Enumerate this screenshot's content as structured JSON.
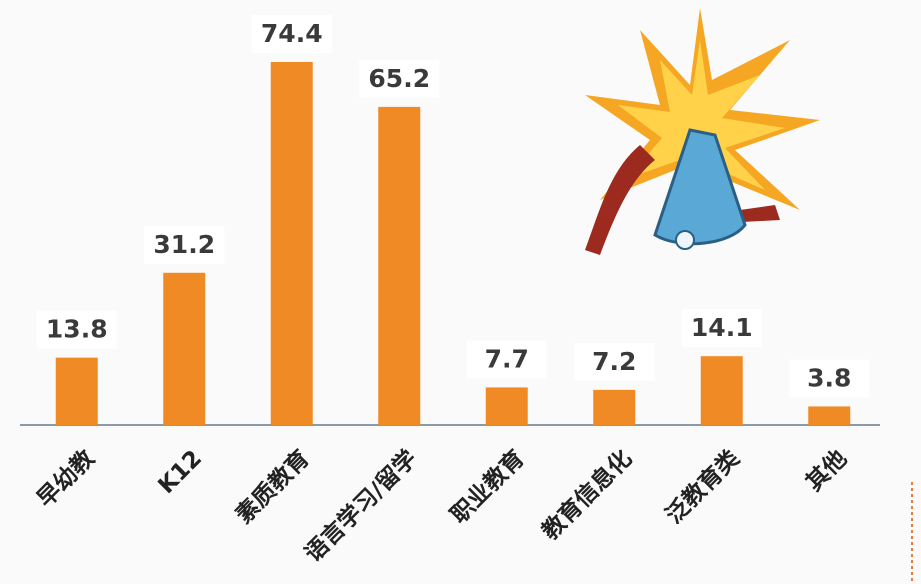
{
  "chart_data": {
    "type": "bar",
    "categories": [
      "早幼教",
      "K12",
      "素质教育",
      "语言学习/留学",
      "职业教育",
      "教育信息化",
      "泛教育类",
      "其他"
    ],
    "values": [
      13.8,
      31.2,
      74.4,
      65.2,
      7.7,
      7.2,
      14.1,
      3.8
    ],
    "color": "#f08a24"
  }
}
